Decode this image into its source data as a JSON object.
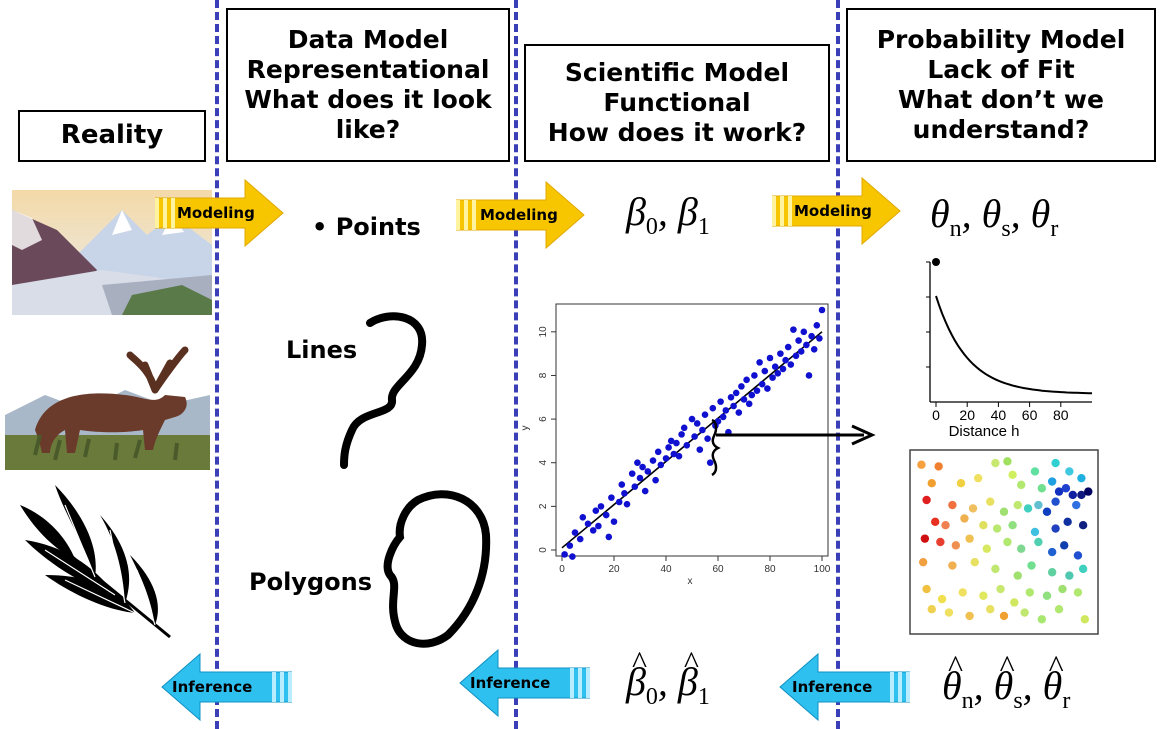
{
  "headers": {
    "reality": [
      "Reality"
    ],
    "data_model": [
      "Data Model",
      "Representational",
      "What does it look",
      "like?"
    ],
    "scientific_model": [
      "Scientific Model",
      "Functional",
      "How does it work?"
    ],
    "probability_model": [
      "Probability Model",
      "Lack of Fit",
      "What don’t we",
      "understand?"
    ]
  },
  "arrows": {
    "modeling_label": "Modeling",
    "inference_label": "Inference"
  },
  "data_types": {
    "points": "• Points",
    "lines": "Lines",
    "polygons": "Polygons"
  },
  "parameters": {
    "beta": [
      "β",
      "0",
      "β",
      "1"
    ],
    "theta": [
      "θ",
      "n",
      "θ",
      "s",
      "θ",
      "r"
    ],
    "separator": ","
  },
  "colors": {
    "divider": "#3a3fb8",
    "modeling_arrow": "#f7c600",
    "inference_arrow": "#2ec1f0",
    "scatter_points": "#1010d0"
  },
  "chart_data": [
    {
      "type": "scatter",
      "title": "",
      "xlabel": "x",
      "ylabel": "y",
      "xlim": [
        0,
        100
      ],
      "ylim": [
        0,
        11
      ],
      "xticks": [
        0,
        20,
        40,
        60,
        80,
        100
      ],
      "yticks": [
        0,
        2,
        4,
        6,
        8,
        10
      ],
      "fit_line": {
        "x": [
          0,
          100
        ],
        "y": [
          0.1,
          10.0
        ]
      },
      "x": [
        1,
        3,
        4,
        5,
        7,
        8,
        10,
        12,
        13,
        14,
        15,
        17,
        18,
        19,
        20,
        22,
        23,
        24,
        25,
        27,
        28,
        29,
        30,
        31,
        32,
        33,
        35,
        36,
        37,
        38,
        40,
        41,
        42,
        43,
        44,
        45,
        46,
        47,
        48,
        50,
        51,
        52,
        53,
        54,
        55,
        56,
        57,
        58,
        59,
        60,
        61,
        62,
        63,
        64,
        65,
        66,
        67,
        68,
        69,
        70,
        71,
        72,
        73,
        74,
        75,
        76,
        77,
        78,
        79,
        80,
        81,
        82,
        83,
        84,
        85,
        86,
        87,
        88,
        89,
        90,
        91,
        92,
        93,
        94,
        95,
        96,
        97,
        98,
        99,
        100
      ],
      "y": [
        -0.2,
        0.2,
        -0.3,
        0.8,
        0.5,
        1.5,
        1.2,
        0.9,
        1.8,
        1.1,
        2.0,
        1.6,
        0.6,
        2.4,
        1.3,
        2.2,
        3.0,
        2.6,
        2.1,
        3.5,
        2.9,
        4.0,
        3.3,
        3.8,
        2.7,
        3.6,
        4.1,
        3.2,
        4.5,
        3.9,
        4.2,
        4.7,
        5.0,
        4.4,
        4.9,
        4.3,
        5.3,
        5.6,
        4.8,
        6.0,
        5.2,
        5.8,
        4.6,
        5.5,
        6.2,
        5.1,
        4.0,
        6.5,
        5.7,
        5.9,
        6.8,
        6.1,
        6.4,
        5.4,
        7.0,
        6.6,
        7.2,
        6.3,
        7.5,
        6.9,
        7.8,
        6.7,
        7.1,
        8.0,
        7.3,
        8.6,
        7.6,
        8.2,
        7.4,
        8.8,
        7.9,
        8.4,
        8.1,
        9.0,
        8.3,
        8.7,
        9.3,
        8.5,
        10.1,
        8.9,
        9.6,
        9.1,
        10.0,
        9.4,
        8.0,
        9.8,
        9.2,
        10.3,
        9.7,
        11.0
      ]
    },
    {
      "type": "line",
      "title": "",
      "xlabel": "Distance h",
      "ylabel": "",
      "xlim": [
        0,
        100
      ],
      "xticks": [
        0,
        20,
        40,
        60,
        80
      ],
      "nugget_point": {
        "x": 0,
        "y": 1.0
      },
      "curve": {
        "sill_start": 0.75,
        "floor": 0.03,
        "decay": 0.05
      }
    },
    {
      "type": "scatter",
      "title": "",
      "xlabel": "",
      "ylabel": "",
      "xlim": [
        0,
        1
      ],
      "ylim": [
        0,
        1
      ],
      "points": [
        {
          "x": 0.02,
          "y": 0.96,
          "color": "#f7a040"
        },
        {
          "x": 0.12,
          "y": 0.95,
          "color": "#f08030"
        },
        {
          "x": 0.45,
          "y": 0.97,
          "color": "#c8e870"
        },
        {
          "x": 0.52,
          "y": 0.98,
          "color": "#a0e060"
        },
        {
          "x": 0.55,
          "y": 0.9,
          "color": "#d0f060"
        },
        {
          "x": 0.68,
          "y": 0.92,
          "color": "#60e0a0"
        },
        {
          "x": 0.8,
          "y": 0.97,
          "color": "#30d0d0"
        },
        {
          "x": 0.88,
          "y": 0.92,
          "color": "#40c8e0"
        },
        {
          "x": 0.95,
          "y": 0.88,
          "color": "#20b0e0"
        },
        {
          "x": 0.35,
          "y": 0.88,
          "color": "#f0e060"
        },
        {
          "x": 0.25,
          "y": 0.85,
          "color": "#f0d040"
        },
        {
          "x": 0.08,
          "y": 0.85,
          "color": "#f0a030"
        },
        {
          "x": 0.6,
          "y": 0.84,
          "color": "#b0e870"
        },
        {
          "x": 0.72,
          "y": 0.82,
          "color": "#70e090"
        },
        {
          "x": 0.78,
          "y": 0.86,
          "color": "#20a0e0"
        },
        {
          "x": 0.82,
          "y": 0.8,
          "color": "#1030c0"
        },
        {
          "x": 0.86,
          "y": 0.82,
          "color": "#2040d0"
        },
        {
          "x": 0.9,
          "y": 0.78,
          "color": "#1020a0"
        },
        {
          "x": 0.95,
          "y": 0.78,
          "color": "#101880"
        },
        {
          "x": 0.99,
          "y": 0.8,
          "color": "#000060"
        },
        {
          "x": 0.05,
          "y": 0.75,
          "color": "#e02020"
        },
        {
          "x": 0.2,
          "y": 0.72,
          "color": "#f07040"
        },
        {
          "x": 0.32,
          "y": 0.7,
          "color": "#f0c060"
        },
        {
          "x": 0.42,
          "y": 0.74,
          "color": "#e8e060"
        },
        {
          "x": 0.5,
          "y": 0.68,
          "color": "#a0e070"
        },
        {
          "x": 0.58,
          "y": 0.72,
          "color": "#c0e870"
        },
        {
          "x": 0.64,
          "y": 0.7,
          "color": "#40d0c0"
        },
        {
          "x": 0.7,
          "y": 0.72,
          "color": "#60c0d0"
        },
        {
          "x": 0.75,
          "y": 0.68,
          "color": "#1040c0"
        },
        {
          "x": 0.8,
          "y": 0.74,
          "color": "#2050d0"
        },
        {
          "x": 0.92,
          "y": 0.72,
          "color": "#3070e0"
        },
        {
          "x": 0.1,
          "y": 0.62,
          "color": "#e83020"
        },
        {
          "x": 0.16,
          "y": 0.6,
          "color": "#f08050"
        },
        {
          "x": 0.27,
          "y": 0.64,
          "color": "#f0b050"
        },
        {
          "x": 0.38,
          "y": 0.6,
          "color": "#e0e060"
        },
        {
          "x": 0.46,
          "y": 0.58,
          "color": "#b8e870"
        },
        {
          "x": 0.55,
          "y": 0.6,
          "color": "#90e080"
        },
        {
          "x": 0.68,
          "y": 0.56,
          "color": "#40c0e0"
        },
        {
          "x": 0.8,
          "y": 0.58,
          "color": "#2040c0"
        },
        {
          "x": 0.87,
          "y": 0.62,
          "color": "#1030a0"
        },
        {
          "x": 0.96,
          "y": 0.6,
          "color": "#102080"
        },
        {
          "x": 0.04,
          "y": 0.52,
          "color": "#d01010"
        },
        {
          "x": 0.13,
          "y": 0.5,
          "color": "#e84030"
        },
        {
          "x": 0.22,
          "y": 0.48,
          "color": "#f09050"
        },
        {
          "x": 0.3,
          "y": 0.52,
          "color": "#f0c050"
        },
        {
          "x": 0.4,
          "y": 0.46,
          "color": "#d8e860"
        },
        {
          "x": 0.52,
          "y": 0.5,
          "color": "#b0e870"
        },
        {
          "x": 0.6,
          "y": 0.46,
          "color": "#80d890"
        },
        {
          "x": 0.7,
          "y": 0.5,
          "color": "#50d0b0"
        },
        {
          "x": 0.78,
          "y": 0.44,
          "color": "#2060d0"
        },
        {
          "x": 0.85,
          "y": 0.48,
          "color": "#1040b0"
        },
        {
          "x": 0.93,
          "y": 0.42,
          "color": "#2050d0"
        },
        {
          "x": 0.03,
          "y": 0.38,
          "color": "#f0a040"
        },
        {
          "x": 0.2,
          "y": 0.36,
          "color": "#f0b050"
        },
        {
          "x": 0.33,
          "y": 0.38,
          "color": "#e8e060"
        },
        {
          "x": 0.45,
          "y": 0.34,
          "color": "#c0e870"
        },
        {
          "x": 0.58,
          "y": 0.3,
          "color": "#a0e070"
        },
        {
          "x": 0.66,
          "y": 0.36,
          "color": "#70e090"
        },
        {
          "x": 0.78,
          "y": 0.32,
          "color": "#60d0a0"
        },
        {
          "x": 0.88,
          "y": 0.3,
          "color": "#50c8b0"
        },
        {
          "x": 0.96,
          "y": 0.34,
          "color": "#40d0c0"
        },
        {
          "x": 0.05,
          "y": 0.22,
          "color": "#f0c040"
        },
        {
          "x": 0.14,
          "y": 0.16,
          "color": "#f0e050"
        },
        {
          "x": 0.26,
          "y": 0.2,
          "color": "#f0e060"
        },
        {
          "x": 0.38,
          "y": 0.18,
          "color": "#e0e860"
        },
        {
          "x": 0.48,
          "y": 0.22,
          "color": "#c8e870"
        },
        {
          "x": 0.56,
          "y": 0.14,
          "color": "#d0e860"
        },
        {
          "x": 0.65,
          "y": 0.2,
          "color": "#b0e870"
        },
        {
          "x": 0.75,
          "y": 0.18,
          "color": "#90e080"
        },
        {
          "x": 0.84,
          "y": 0.22,
          "color": "#a0e070"
        },
        {
          "x": 0.93,
          "y": 0.2,
          "color": "#b0e870"
        },
        {
          "x": 0.08,
          "y": 0.1,
          "color": "#f0d050"
        },
        {
          "x": 0.18,
          "y": 0.08,
          "color": "#f0e060"
        },
        {
          "x": 0.3,
          "y": 0.06,
          "color": "#f0c050"
        },
        {
          "x": 0.42,
          "y": 0.1,
          "color": "#e8e060"
        },
        {
          "x": 0.62,
          "y": 0.08,
          "color": "#c0e870"
        },
        {
          "x": 0.72,
          "y": 0.04,
          "color": "#a8e870"
        },
        {
          "x": 0.82,
          "y": 0.1,
          "color": "#b0e870"
        },
        {
          "x": 0.97,
          "y": 0.04,
          "color": "#d0e860"
        },
        {
          "x": 0.5,
          "y": 0.06,
          "color": "#f0a030"
        }
      ]
    }
  ]
}
